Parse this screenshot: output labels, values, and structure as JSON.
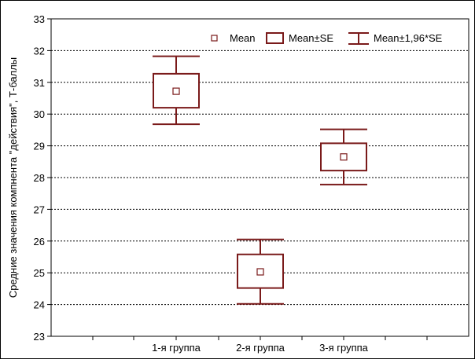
{
  "chart_data": {
    "type": "box",
    "ylabel": "Средние значения компнента \"действия\", Т-баллы",
    "xlabel": "",
    "ylim": [
      23,
      33
    ],
    "yticks": [
      23,
      24,
      25,
      26,
      27,
      28,
      29,
      30,
      31,
      32,
      33
    ],
    "grid": true,
    "legend_position": "top-right",
    "categories": [
      "1-я группа",
      "2-я группа",
      "3-я группа"
    ],
    "legend": {
      "mean": "Mean",
      "se": "Mean±SE",
      "ci": "Mean±1,96*SE"
    },
    "series": [
      {
        "category": "1-я группа",
        "mean": 30.72,
        "se_low": 30.2,
        "se_high": 31.27,
        "ci_low": 29.68,
        "ci_high": 31.82
      },
      {
        "category": "2-я группа",
        "mean": 25.03,
        "se_low": 24.52,
        "se_high": 25.58,
        "ci_low": 24.02,
        "ci_high": 26.05
      },
      {
        "category": "3-я группа",
        "mean": 28.65,
        "se_low": 28.22,
        "se_high": 29.08,
        "ci_low": 27.78,
        "ci_high": 29.52
      }
    ],
    "colors": {
      "series": "#7a1a1a",
      "axis": "#000000",
      "grid": "#000000",
      "background": "#ffffff"
    }
  }
}
